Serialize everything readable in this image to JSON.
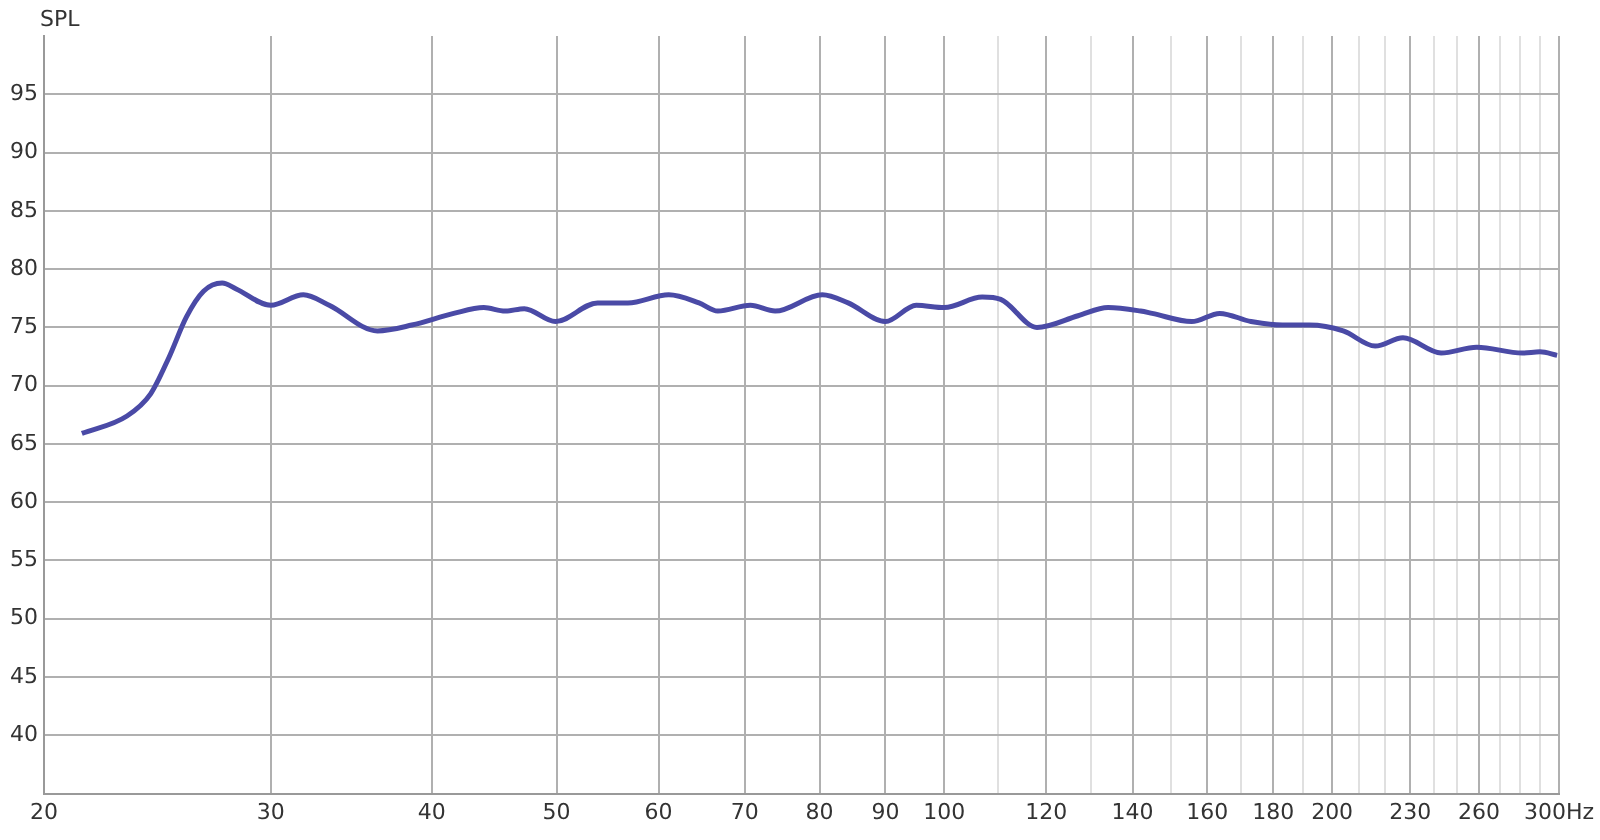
{
  "chart_data": {
    "type": "line",
    "ylabel": "SPL",
    "log": "x",
    "grid": true,
    "marker": "none",
    "line_style": "solid",
    "legend": false,
    "xlim": [
      20,
      300
    ],
    "xticks": [
      20,
      30,
      40,
      50,
      60,
      70,
      80,
      90,
      100,
      {
        "value": 110,
        "label": null
      },
      120,
      {
        "value": 130,
        "label": null
      },
      140,
      {
        "value": 150,
        "label": null
      },
      160,
      {
        "value": 170,
        "label": null
      },
      180,
      {
        "value": 190,
        "label": null
      },
      200,
      {
        "value": 210,
        "label": null
      },
      {
        "value": 220,
        "label": null
      },
      230,
      {
        "value": 240,
        "label": null
      },
      {
        "value": 250,
        "label": null
      },
      260,
      {
        "value": 270,
        "label": null
      },
      {
        "value": 280,
        "label": null
      },
      {
        "value": 290,
        "label": null
      },
      {
        "value": 300,
        "label": "300Hz"
      }
    ],
    "ylim": [
      35,
      100
    ],
    "yticks": [
      40,
      45,
      50,
      55,
      60,
      65,
      70,
      75,
      80,
      85,
      90,
      95
    ],
    "series": [
      {
        "color": "#4a4aa6",
        "x": [
          21.4,
          23.2,
          24.2,
          25.0,
          25.8,
          26.6,
          27.5,
          28.2,
          30.0,
          31.8,
          33.3,
          36.3,
          38.6,
          41.6,
          43.9,
          45.6,
          47.2,
          49.9,
          53.8,
          56.8,
          61.1,
          64.5,
          66.7,
          70.7,
          73.9,
          80.4,
          84.2,
          90.0,
          95.1,
          100,
          107,
          110.6,
          118,
          127,
          134,
          142,
          145,
          155.6,
          163.6,
          173,
          183,
          192,
          204,
          216,
          227,
          243,
          259,
          281,
          290,
          299
        ],
        "values": [
          65.9,
          67.4,
          69.3,
          72.4,
          75.9,
          78.1,
          78.8,
          78.3,
          76.9,
          77.8,
          76.9,
          74.7,
          75.2,
          76.2,
          76.7,
          76.4,
          76.6,
          75.5,
          77.1,
          77.1,
          77.8,
          77.1,
          76.4,
          76.9,
          76.4,
          77.8,
          77.1,
          75.5,
          76.9,
          76.7,
          77.6,
          77.4,
          75.0,
          76.0,
          76.7,
          76.4,
          76.2,
          75.5,
          76.2,
          75.5,
          75.2,
          75.2,
          74.7,
          73.4,
          74.1,
          72.8,
          73.3,
          72.8,
          72.9,
          72.6
        ]
      }
    ]
  }
}
